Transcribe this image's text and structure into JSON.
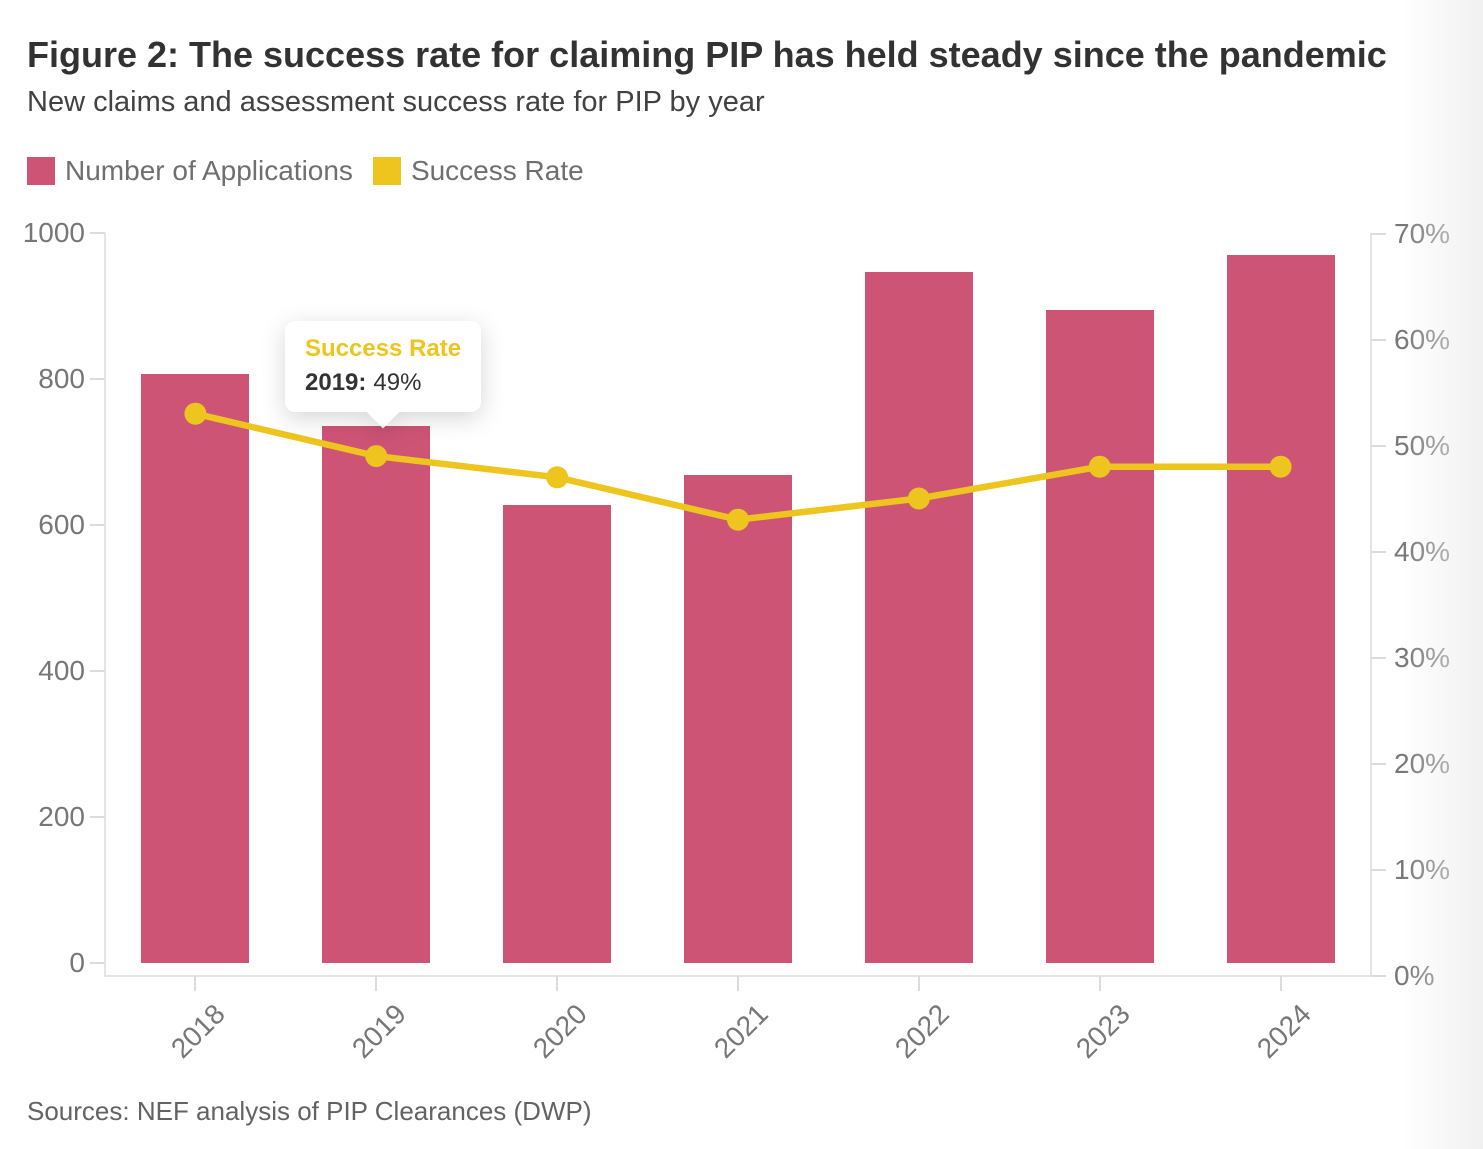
{
  "header": {
    "title": "Figure 2: The success rate for claiming PIP has held steady since the pandemic",
    "subtitle": "New claims and assessment success rate for PIP by year"
  },
  "legend": {
    "items": [
      {
        "label": "Number of Applications",
        "color": "#ce5476"
      },
      {
        "label": "Success Rate",
        "color": "#eec41e"
      }
    ]
  },
  "tooltip": {
    "title": "Success Rate",
    "label": "2019:",
    "value": "49%"
  },
  "footer": {
    "source": "Sources: NEF analysis of PIP Clearances (DWP)"
  },
  "chart_data": {
    "type": "bar",
    "categories": [
      "2018",
      "2019",
      "2020",
      "2021",
      "2022",
      "2023",
      "2024"
    ],
    "series": [
      {
        "name": "Number of Applications",
        "type": "bar",
        "axis": "left",
        "color": "#ce5476",
        "values": [
          807,
          735,
          628,
          668,
          947,
          895,
          970
        ]
      },
      {
        "name": "Success Rate",
        "type": "line",
        "axis": "right",
        "color": "#eec41e",
        "unit": "%",
        "values": [
          53,
          49,
          47,
          43,
          45,
          48,
          48
        ]
      }
    ],
    "title": "Figure 2: The success rate for claiming PIP has held steady since the pandemic",
    "subtitle": "New claims and assessment success rate for PIP by year",
    "left_axis": {
      "min": 0,
      "max": 1000,
      "step": 200,
      "tick_labels": [
        "0",
        "200",
        "400",
        "600",
        "800",
        "1000"
      ]
    },
    "right_axis": {
      "min": 0,
      "max": 70,
      "step": 10,
      "tick_labels": [
        "0%",
        "10%",
        "20%",
        "30%",
        "40%",
        "50%",
        "60%",
        "70%"
      ]
    },
    "grid": false,
    "legend_position": "top-left",
    "annotation": {
      "series": "Success Rate",
      "category": "2019",
      "value": "49%"
    }
  }
}
